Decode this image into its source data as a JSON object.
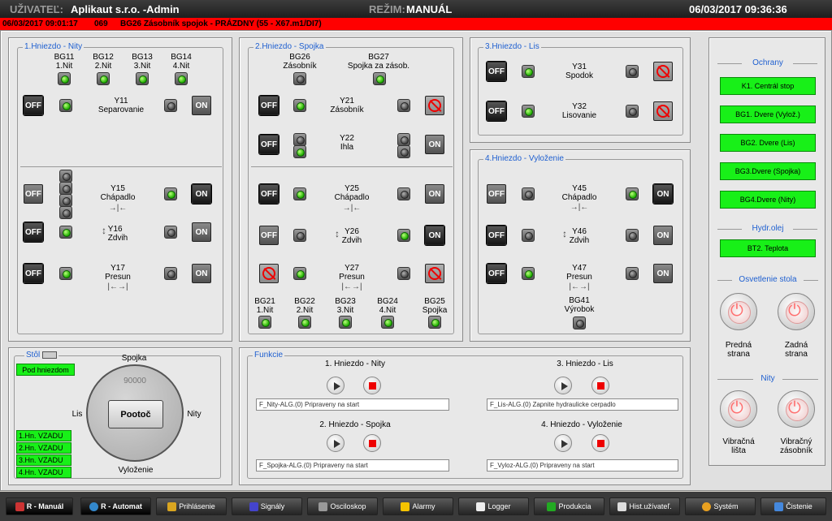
{
  "header": {
    "user_label": "UŽIVATEĽ:",
    "user": "Aplikaut s.r.o. -Admin",
    "mode_label": "REŽIM:",
    "mode": "MANUÁL",
    "datetime": "06/03/2017 09:36:36"
  },
  "alarm": {
    "time": "06/03/2017 09:01:17",
    "code": "069",
    "text": "BG26 Zásobník spojok - PRÁZDNY  (55 - X67.m1/DI7)"
  },
  "p1": {
    "title": "1.Hniezdo - Nity",
    "bg11": "BG11\n1.Nit",
    "bg12": "BG12\n2.Nit",
    "bg13": "BG13\n3.Nit",
    "bg14": "BG14\n4.Nit",
    "y11": "Y11\nSeparovanie",
    "y15": "Y15\nChápadlo",
    "y16": "Y16\nZdvih",
    "y17": "Y17\nPresun"
  },
  "p2": {
    "title": "2.Hniezdo - Spojka",
    "bg26": "BG26\nZásobník",
    "bg27": "BG27\nSpojka za zásob.",
    "y21": "Y21\nZásobník",
    "y22": "Y22\nIhla",
    "y25": "Y25\nChápadlo",
    "y26": "Y26\nZdvih",
    "y27": "Y27\nPresun",
    "bg21": "BG21\n1.Nit",
    "bg22": "BG22\n2.Nit",
    "bg23": "BG23\n3.Nit",
    "bg24": "BG24\n4.Nit",
    "bg25": "BG25\nSpojka"
  },
  "p3": {
    "title": "3.Hniezdo - Lis",
    "y31": "Y31\nSpodok",
    "y32": "Y32\nLisovanie"
  },
  "p4": {
    "title": "4.Hniezdo - Vyloženie",
    "y45": "Y45\nChápadlo",
    "y46": "Y46\nZdvih",
    "y47": "Y47\nPresun",
    "bg41": "BG41\nVýrobok"
  },
  "buttons": {
    "off": "OFF",
    "on": "ON"
  },
  "right": {
    "ochrany": "Ochrany",
    "k1": "K1. Centrál stop",
    "bg1": "BG1. Dvere (Vylož.)",
    "bg2": "BG2. Dvere (Lis)",
    "bg3": "BG3.Dvere (Spojka)",
    "bg4": "BG4.Dvere (Nity)",
    "hydr": "Hydr.olej",
    "bt2": "BT2. Teplota",
    "osv": "Osvetlenie stola",
    "predna": "Predná\nstrana",
    "zadna": "Zadná\nstrana",
    "nity": "Nity",
    "vibl": "Vibračná\nlišta",
    "vibz": "Vibračný\nzásobník"
  },
  "stol": {
    "title": "Stôl",
    "pod": "Pod hniezdom",
    "spojka": "Spojka",
    "lis": "Lis",
    "nity": "Nity",
    "vylozenie": "Vyloženie",
    "count": "90000",
    "rotate": "Pootoč",
    "vzadu": [
      "1.Hn. VZADU",
      "2.Hn. VZADU",
      "3.Hn. VZADU",
      "4.Hn. VZADU"
    ]
  },
  "funkcie": {
    "title": "Funkcie",
    "f1": "1. Hniezdo - Nity",
    "f2": "2. Hniezdo - Spojka",
    "f3": "3. Hniezdo - Lis",
    "f4": "4. Hniezdo - Vyloženie",
    "s1": "F_Nity-ALG.(0) Pripraveny na start",
    "s2": "F_Spojka-ALG.(0) Pripraveny na start",
    "s3": "F_Lis-ALG.(0) Zapnite hydraulicke cerpadlo",
    "s4": "F_Vyloz-ALG.(0) Pripraveny na start"
  },
  "nav": [
    "R - Manuál",
    "R - Automat",
    "Prihlásenie",
    "Signály",
    "Osciloskop",
    "Alarmy",
    "Logger",
    "Produkcia",
    "Hist.užívateľ.",
    "Systém",
    "Čistenie"
  ],
  "colors": {
    "accent": "#1e5fd0",
    "alarm": "#ff0000",
    "ok": "#18f018"
  }
}
